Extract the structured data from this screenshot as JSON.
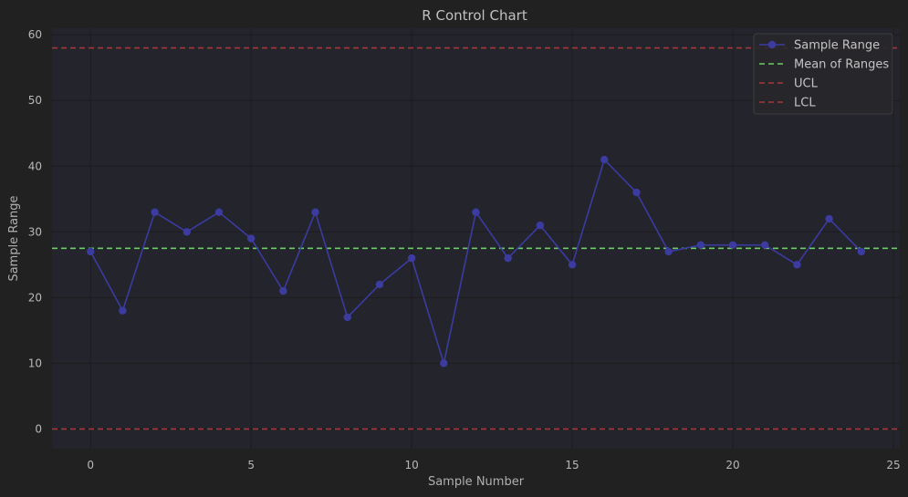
{
  "chart_data": {
    "type": "line",
    "title": "R Control Chart",
    "xlabel": "Sample Number",
    "ylabel": "Sample Range",
    "xlim": [
      -1.2,
      25.2
    ],
    "ylim": [
      -3,
      61
    ],
    "xticks": [
      0,
      5,
      10,
      15,
      20,
      25
    ],
    "yticks": [
      0,
      10,
      20,
      30,
      40,
      50,
      60
    ],
    "grid": true,
    "legend_position": "top-right",
    "series": [
      {
        "name": "Sample Range",
        "style": "line-marker",
        "color": "#3b3ba0",
        "x": [
          0,
          1,
          2,
          3,
          4,
          5,
          6,
          7,
          8,
          9,
          10,
          11,
          12,
          13,
          14,
          15,
          16,
          17,
          18,
          19,
          20,
          21,
          22,
          23,
          24
        ],
        "values": [
          27,
          18,
          33,
          30,
          33,
          29,
          21,
          33,
          17,
          22,
          26,
          10,
          33,
          26,
          31,
          25,
          41,
          36,
          27,
          28,
          28,
          28,
          25,
          32,
          27
        ]
      }
    ],
    "reference_lines": [
      {
        "name": "Mean of Ranges",
        "y": 27.5,
        "color": "#6acc64",
        "style": "dashed"
      },
      {
        "name": "UCL",
        "y": 58,
        "color": "#a6373b",
        "style": "dashed"
      },
      {
        "name": "LCL",
        "y": 0,
        "color": "#a6373b",
        "style": "dashed"
      }
    ],
    "colors": {
      "background": "#212121",
      "plot_background": "#24242d",
      "grid": "#1c1c1f"
    }
  }
}
